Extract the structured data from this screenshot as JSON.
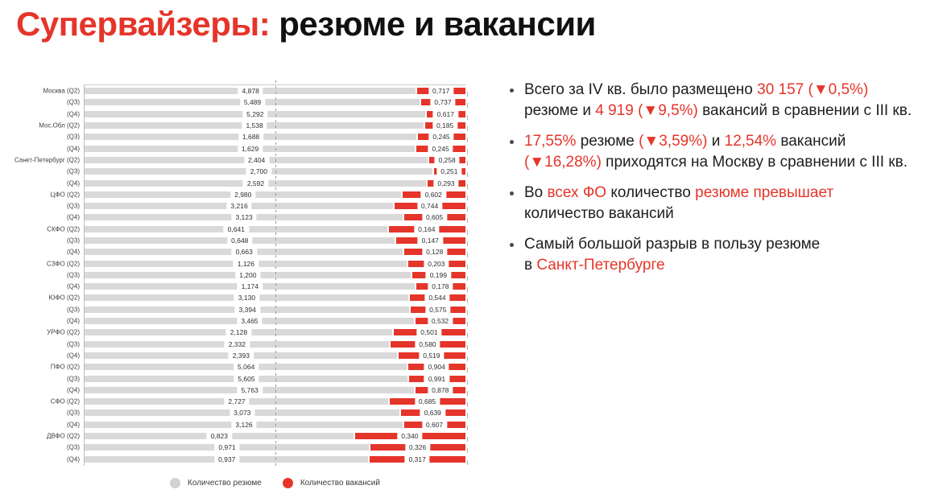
{
  "title": {
    "highlight": "Супервайзеры:",
    "rest": "резюме и вакансии"
  },
  "colors": {
    "accent_red": "#e5352a",
    "bar_gray": "#d9d9d9",
    "text_dark": "#1e1e1e"
  },
  "chart_data": {
    "type": "bar",
    "variant": "horizontal-100%-stacked",
    "orientation": "horizontal",
    "units": "thousands",
    "series_names": [
      "Количество резюме",
      "Количество вакансий"
    ],
    "midline": "50% dashed reference line",
    "rows": [
      {
        "label": "Москва (Q2)",
        "resumes": "4,878",
        "vacancies": "0,717"
      },
      {
        "label": "(Q3)",
        "resumes": "5,489",
        "vacancies": "0,737"
      },
      {
        "label": "(Q4)",
        "resumes": "5,292",
        "vacancies": "0,617"
      },
      {
        "label": "Мос.Обл (Q2)",
        "resumes": "1,538",
        "vacancies": "0,185"
      },
      {
        "label": "(Q3)",
        "resumes": "1,688",
        "vacancies": "0,245"
      },
      {
        "label": "(Q4)",
        "resumes": "1,629",
        "vacancies": "0,245"
      },
      {
        "label": "Санкт-Петербург (Q2)",
        "resumes": "2,404",
        "vacancies": "0,258"
      },
      {
        "label": "(Q3)",
        "resumes": "2,700",
        "vacancies": "0,251"
      },
      {
        "label": "(Q4)",
        "resumes": "2,592",
        "vacancies": "0,293"
      },
      {
        "label": "ЦФО (Q2)",
        "resumes": "2,980",
        "vacancies": "0,602"
      },
      {
        "label": "(Q3)",
        "resumes": "3,216",
        "vacancies": "0,744"
      },
      {
        "label": "(Q4)",
        "resumes": "3,123",
        "vacancies": "0,605"
      },
      {
        "label": "СКФО (Q2)",
        "resumes": "0,641",
        "vacancies": "0,164"
      },
      {
        "label": "(Q3)",
        "resumes": "0,648",
        "vacancies": "0,147"
      },
      {
        "label": "(Q4)",
        "resumes": "0,663",
        "vacancies": "0,128"
      },
      {
        "label": "СЗФО (Q2)",
        "resumes": "1,126",
        "vacancies": "0,203"
      },
      {
        "label": "(Q3)",
        "resumes": "1,200",
        "vacancies": "0,199"
      },
      {
        "label": "(Q4)",
        "resumes": "1,174",
        "vacancies": "0,178"
      },
      {
        "label": "ЮФО (Q2)",
        "resumes": "3,130",
        "vacancies": "0,544"
      },
      {
        "label": "(Q3)",
        "resumes": "3,394",
        "vacancies": "0,575"
      },
      {
        "label": "(Q4)",
        "resumes": "3,465",
        "vacancies": "0,532"
      },
      {
        "label": "УРФО (Q2)",
        "resumes": "2,128",
        "vacancies": "0,501"
      },
      {
        "label": "(Q3)",
        "resumes": "2,332",
        "vacancies": "0,580"
      },
      {
        "label": "(Q4)",
        "resumes": "2,393",
        "vacancies": "0,519"
      },
      {
        "label": "ПФО (Q2)",
        "resumes": "5,064",
        "vacancies": "0,904"
      },
      {
        "label": "(Q3)",
        "resumes": "5,605",
        "vacancies": "0,991"
      },
      {
        "label": "(Q4)",
        "resumes": "5,763",
        "vacancies": "0,878"
      },
      {
        "label": "СФО (Q2)",
        "resumes": "2,727",
        "vacancies": "0,685"
      },
      {
        "label": "(Q3)",
        "resumes": "3,073",
        "vacancies": "0,639"
      },
      {
        "label": "(Q4)",
        "resumes": "3,126",
        "vacancies": "0,607"
      },
      {
        "label": "ДВФО (Q2)",
        "resumes": "0,823",
        "vacancies": "0,340"
      },
      {
        "label": "(Q3)",
        "resumes": "0,971",
        "vacancies": "0,326"
      },
      {
        "label": "(Q4)",
        "resumes": "0,937",
        "vacancies": "0,317"
      }
    ]
  },
  "legend": {
    "resumes_label": "Количество резюме",
    "vacancies_label": "Количество вакансий"
  },
  "bullets": [
    {
      "segments": [
        {
          "text": "Всего за IV кв. было размещено ",
          "red": false
        },
        {
          "text": "30 157 (▼0,5%)",
          "red": true
        },
        {
          "text": "\nрезюме и ",
          "red": false
        },
        {
          "text": "4 919 (▼9,5%)",
          "red": true
        },
        {
          "text": " вакансий в сравнении с III кв.",
          "red": false
        }
      ]
    },
    {
      "segments": [
        {
          "text": "17,55%",
          "red": true
        },
        {
          "text": " резюме ",
          "red": false
        },
        {
          "text": "(▼3,59%)",
          "red": true
        },
        {
          "text": " и ",
          "red": false
        },
        {
          "text": "12,54%",
          "red": true
        },
        {
          "text": " вакансий\n",
          "red": false
        },
        {
          "text": "(▼16,28%)",
          "red": true
        },
        {
          "text": " приходятся на Москву в сравнении с III кв.",
          "red": false
        }
      ]
    },
    {
      "segments": [
        {
          "text": "Во ",
          "red": false
        },
        {
          "text": "всех ФО",
          "red": true
        },
        {
          "text": " количество ",
          "red": false
        },
        {
          "text": "резюме превышает",
          "red": true
        },
        {
          "text": "\nколичество вакансий",
          "red": false
        }
      ]
    },
    {
      "segments": [
        {
          "text": "Самый большой разрыв в пользу резюме\nв ",
          "red": false
        },
        {
          "text": "Санкт-Петербурге",
          "red": true
        }
      ]
    }
  ]
}
